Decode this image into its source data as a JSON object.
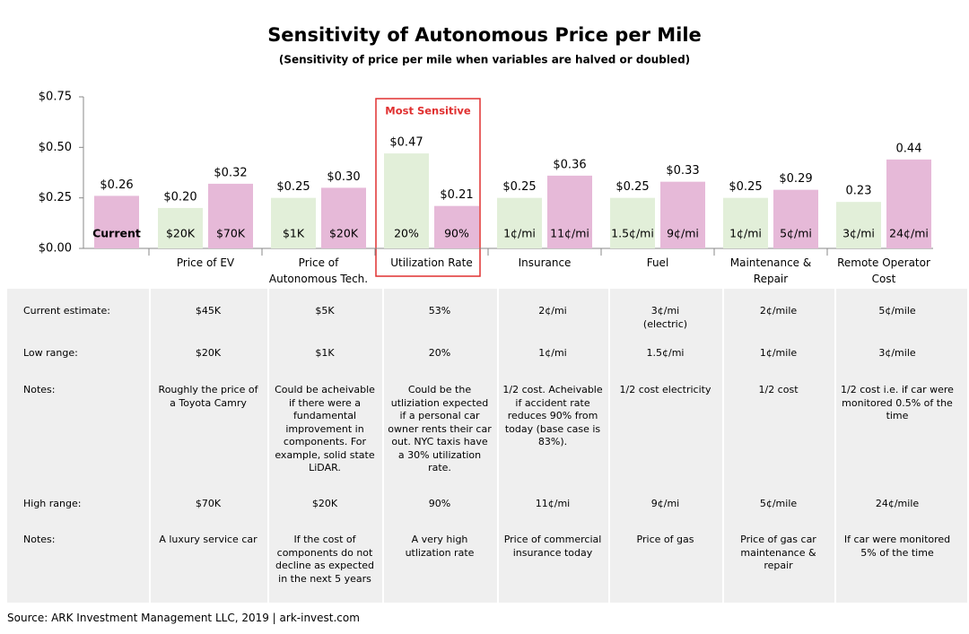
{
  "chart_data": {
    "type": "bar",
    "title": "Sensitivity of Autonomous Price per Mile",
    "subtitle": "(Sensitivity of price per mile when variables are halved or doubled)",
    "annotation": "Most Sensitive",
    "categories": [
      null,
      "Price of EV",
      "Price of Autonomous Tech.",
      "Utilization Rate",
      "Insurance",
      "Fuel",
      "Maintenance & Repair",
      "Remote Operator Cost"
    ],
    "series": [
      {
        "color": "#e2efd9",
        "values": [
          null,
          0.2,
          0.25,
          0.47,
          0.25,
          0.25,
          0.25,
          0.23
        ],
        "value_labels": [
          null,
          "$0.20",
          "$0.25",
          "$0.47",
          "$0.25",
          "$0.25",
          "$0.25",
          "0.23"
        ],
        "bar_labels": [
          null,
          "$20K",
          "$1K",
          "20%",
          "1¢/mi",
          "1.5¢/mi",
          "1¢/mi",
          "3¢/mi"
        ]
      },
      {
        "color": "#e6b9d8",
        "values": [
          0.26,
          0.32,
          0.3,
          0.21,
          0.36,
          0.33,
          0.29,
          0.44
        ],
        "value_labels": [
          "$0.26",
          "$0.32",
          "$0.30",
          "$0.21",
          "$0.36",
          "$0.33",
          "$0.29",
          "0.44"
        ],
        "bar_labels": [
          "Current",
          "$70K",
          "$20K",
          "90%",
          "11¢/mi",
          "9¢/mi",
          "5¢/mi",
          "24¢/mi"
        ]
      }
    ],
    "ylim": [
      0,
      0.75
    ],
    "yticks": [
      {
        "value": 0,
        "label": "$0.00"
      },
      {
        "value": 0.25,
        "label": "$0.25"
      },
      {
        "value": 0.5,
        "label": "$0.50"
      },
      {
        "value": 0.75,
        "label": "$0.75"
      }
    ]
  },
  "table": {
    "rows": [
      [
        "Current estimate:",
        "$45K",
        "$5K",
        "53%",
        "2¢/mi",
        "3¢/mi\n(electric)",
        "2¢/mile",
        "5¢/mile"
      ],
      [
        "Low range:",
        "$20K",
        "$1K",
        "20%",
        "1¢/mi",
        "1.5¢/mi",
        "1¢/mile",
        "3¢/mile"
      ],
      [
        "Notes:",
        "Roughly the price of a Toyota Camry",
        "Could be acheivable if there were a fundamental improvement in components. For example, solid state LiDAR.",
        "Could be the utliziation expected if a personal car owner rents their car out. NYC taxis have a 30% utilization rate.",
        "1/2 cost. Acheivable if accident rate reduces 90% from today (base case is 83%).",
        "1/2 cost electricity",
        "1/2 cost",
        "1/2 cost i.e. if car were monitored 0.5% of the time"
      ],
      [
        "High range:",
        "$70K",
        "$20K",
        "90%",
        "11¢/mi",
        "9¢/mi",
        "5¢/mile",
        "24¢/mile"
      ],
      [
        "Notes:",
        "A luxury service car",
        "If the cost of components do not decline as expected in the next 5 years",
        "A very high utlization rate",
        "Price of commercial insurance today",
        "Price of gas",
        "Price of gas car maintenance & repair",
        "If car were monitored 5% of the time"
      ]
    ]
  },
  "source": "Source: ARK Investment Management LLC, 2019 | ark-invest.com"
}
